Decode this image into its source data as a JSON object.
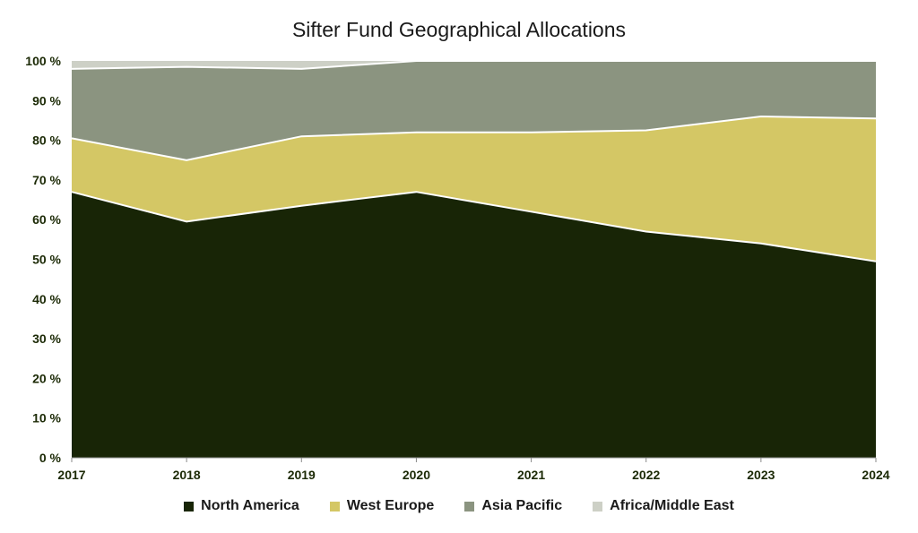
{
  "chart_data": {
    "type": "area",
    "stacked": true,
    "title": "Sifter Fund Geographical Allocations",
    "x": [
      "2017",
      "2018",
      "2019",
      "2020",
      "2021",
      "2022",
      "2023",
      "2024"
    ],
    "y_ticks": [
      "0 %",
      "10 %",
      "20 %",
      "30 %",
      "40 %",
      "50 %",
      "60 %",
      "70 %",
      "80 %",
      "90 %",
      "100 %"
    ],
    "ylim": [
      0,
      100
    ],
    "legend_position": "bottom",
    "series": [
      {
        "name": "North America",
        "color": "#182506",
        "values": [
          67,
          59.5,
          63.5,
          67,
          62,
          57,
          54,
          49.5
        ]
      },
      {
        "name": "West Europe",
        "color": "#d4c765",
        "values": [
          13.5,
          15.5,
          17.5,
          15,
          20,
          25.5,
          32,
          36
        ]
      },
      {
        "name": "Asia Pacific",
        "color": "#8b9480",
        "values": [
          17.5,
          23.5,
          17,
          18,
          18,
          17.5,
          14,
          14.5
        ]
      },
      {
        "name": "Africa/Middle East",
        "color": "#cdd0c6",
        "values": [
          2,
          1.5,
          2,
          0,
          0,
          0,
          0,
          0
        ]
      }
    ]
  }
}
